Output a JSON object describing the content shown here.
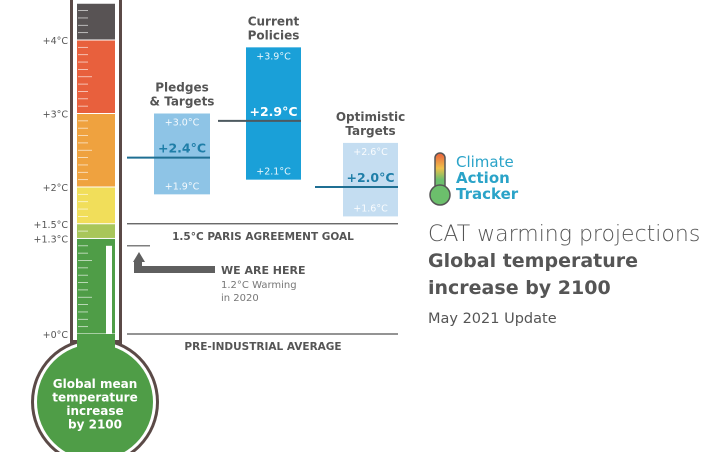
{
  "chart_data": {
    "type": "thermometer-range-bar",
    "unit": "°C",
    "axis_ticks": [
      "+0°C",
      "+1.3°C",
      "+1.5°C",
      "+2°C",
      "+3°C",
      "+4°C"
    ],
    "axis_tick_values": [
      0,
      1.3,
      1.5,
      2,
      3,
      4
    ],
    "bands": [
      {
        "from": 0,
        "to": 1.3,
        "color": "#4f9d47"
      },
      {
        "from": 1.3,
        "to": 1.5,
        "color": "#a8c65a"
      },
      {
        "from": 1.5,
        "to": 2,
        "color": "#f1de5a"
      },
      {
        "from": 2,
        "to": 3,
        "color": "#efa23f"
      },
      {
        "from": 3,
        "to": 4,
        "color": "#e8603d"
      },
      {
        "from": 4,
        "to": 4.5,
        "color": "#585354"
      }
    ],
    "series": [
      {
        "name": "Pledges\n& Targets",
        "name_lines": [
          "Pledges",
          "& Targets"
        ],
        "low": 1.9,
        "mid": 2.4,
        "high": 3.0,
        "low_label": "+1.9°C",
        "mid_label": "+2.4°C",
        "high_label": "+3.0°C",
        "color": "#8ec4e6",
        "mid_color": "#1f7ea8"
      },
      {
        "name": "Current\nPolicies",
        "name_lines": [
          "Current",
          "Policies"
        ],
        "low": 2.1,
        "mid": 2.9,
        "high": 3.9,
        "low_label": "+2.1°C",
        "mid_label": "+2.9°C",
        "high_label": "+3.9°C",
        "color": "#1aa0d8",
        "mid_color": "#ffffff"
      },
      {
        "name": "Optimistic\nTargets",
        "name_lines": [
          "Optimistic",
          "Targets"
        ],
        "low": 1.6,
        "mid": 2.0,
        "high": 2.6,
        "low_label": "+1.6°C",
        "mid_label": "+2.0°C",
        "high_label": "+2.6°C",
        "color": "#c4ddf1",
        "mid_color": "#1f7ea8"
      }
    ],
    "reference_lines": [
      {
        "value": 1.5,
        "label": "1.5°C PARIS AGREEMENT GOAL"
      },
      {
        "value": 0,
        "label": "PRE-INDUSTRIAL AVERAGE"
      }
    ],
    "current": {
      "value": 1.2,
      "label": "WE ARE HERE",
      "sub_lines": [
        "1.2°C Warming",
        "in 2020"
      ]
    },
    "bulb_lines": [
      "Global mean",
      "temperature",
      "increase",
      "by 2100"
    ]
  },
  "brand": {
    "lines": [
      "Climate",
      "Action",
      "Tracker"
    ],
    "color": "#2aa3c8"
  },
  "header": {
    "title": "CAT warming projections",
    "subtitle_lines": [
      "Global temperature",
      "increase by 2100"
    ],
    "update": "May 2021 Update"
  }
}
